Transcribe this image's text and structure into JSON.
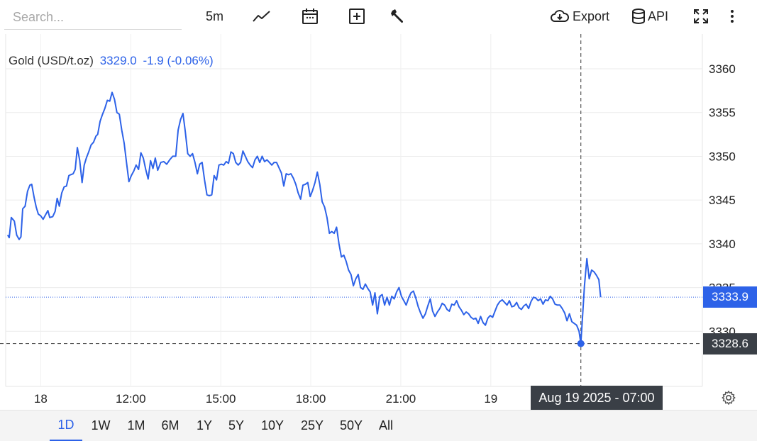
{
  "toolbar": {
    "search_placeholder": "Search...",
    "interval": "5m",
    "export_label": "Export",
    "api_label": "API"
  },
  "legend": {
    "name": "Gold (USD/t.oz)",
    "price": "3329.0",
    "change": "-1.9 (-0.06%)"
  },
  "crosshair": {
    "price_label": "3328.6",
    "time_label": "Aug 19 2025 - 07:00"
  },
  "last_price_label": "3333.9",
  "ranges": [
    "1D",
    "1W",
    "1M",
    "6M",
    "1Y",
    "5Y",
    "10Y",
    "25Y",
    "50Y",
    "All"
  ],
  "active_range": "1D",
  "colors": {
    "line": "#2d62e8",
    "price_tag": "#2d62e8",
    "crosshair_tag": "#3a3f46"
  },
  "chart_data": {
    "type": "line",
    "title": "Gold (USD/t.oz)",
    "xlabel": "",
    "ylabel": "",
    "grid": true,
    "ylim": [
      3325,
      3363
    ],
    "y_ticks": [
      3330,
      3335,
      3340,
      3345,
      3350,
      3355,
      3360
    ],
    "x_ticks": [
      {
        "label": "18",
        "hour": 0
      },
      {
        "label": "12:00",
        "hour": 3
      },
      {
        "label": "15:00",
        "hour": 6
      },
      {
        "label": "18:00",
        "hour": 9
      },
      {
        "label": "21:00",
        "hour": 12
      },
      {
        "label": "19",
        "hour": 15
      }
    ],
    "xlim_hours": [
      -1.12,
      22.05
    ],
    "crosshair": {
      "hour": 18.0,
      "value": 3328.6
    },
    "last_value": 3333.9,
    "series": [
      {
        "name": "Gold (USD/t.oz)",
        "points": [
          [
            -1.1,
            3341.0
          ],
          [
            -1.05,
            3340.7
          ],
          [
            -0.98,
            3343.0
          ],
          [
            -0.88,
            3342.6
          ],
          [
            -0.8,
            3341.0
          ],
          [
            -0.72,
            3340.5
          ],
          [
            -0.66,
            3340.8
          ],
          [
            -0.6,
            3344.0
          ],
          [
            -0.52,
            3344.3
          ],
          [
            -0.44,
            3346.0
          ],
          [
            -0.36,
            3346.7
          ],
          [
            -0.3,
            3346.8
          ],
          [
            -0.22,
            3345.3
          ],
          [
            -0.15,
            3344.2
          ],
          [
            -0.08,
            3343.4
          ],
          [
            0.0,
            3343.2
          ],
          [
            0.08,
            3342.8
          ],
          [
            0.16,
            3343.3
          ],
          [
            0.24,
            3343.8
          ],
          [
            0.3,
            3343.0
          ],
          [
            0.4,
            3343.1
          ],
          [
            0.48,
            3343.7
          ],
          [
            0.55,
            3345.2
          ],
          [
            0.62,
            3344.3
          ],
          [
            0.7,
            3345.8
          ],
          [
            0.78,
            3346.5
          ],
          [
            0.86,
            3346.6
          ],
          [
            0.94,
            3347.8
          ],
          [
            1.0,
            3347.9
          ],
          [
            1.08,
            3348.0
          ],
          [
            1.15,
            3348.5
          ],
          [
            1.22,
            3351.0
          ],
          [
            1.3,
            3349.5
          ],
          [
            1.38,
            3347.0
          ],
          [
            1.45,
            3349.0
          ],
          [
            1.52,
            3349.8
          ],
          [
            1.6,
            3350.5
          ],
          [
            1.68,
            3351.3
          ],
          [
            1.76,
            3351.6
          ],
          [
            1.84,
            3352.3
          ],
          [
            1.9,
            3352.5
          ],
          [
            1.98,
            3354.0
          ],
          [
            2.06,
            3354.8
          ],
          [
            2.14,
            3355.5
          ],
          [
            2.22,
            3356.4
          ],
          [
            2.3,
            3356.3
          ],
          [
            2.38,
            3357.3
          ],
          [
            2.46,
            3356.5
          ],
          [
            2.54,
            3355.0
          ],
          [
            2.62,
            3354.8
          ],
          [
            2.7,
            3353.0
          ],
          [
            2.78,
            3351.5
          ],
          [
            2.86,
            3349.3
          ],
          [
            2.94,
            3347.1
          ],
          [
            3.02,
            3347.8
          ],
          [
            3.1,
            3348.3
          ],
          [
            3.18,
            3349.0
          ],
          [
            3.26,
            3348.5
          ],
          [
            3.34,
            3350.4
          ],
          [
            3.42,
            3349.8
          ],
          [
            3.5,
            3348.5
          ],
          [
            3.58,
            3347.4
          ],
          [
            3.66,
            3349.5
          ],
          [
            3.74,
            3348.6
          ],
          [
            3.82,
            3349.8
          ],
          [
            3.9,
            3348.4
          ],
          [
            4.0,
            3349.3
          ],
          [
            4.1,
            3349.4
          ],
          [
            4.2,
            3349.1
          ],
          [
            4.3,
            3349.6
          ],
          [
            4.4,
            3350.0
          ],
          [
            4.5,
            3350.0
          ],
          [
            4.58,
            3353.0
          ],
          [
            4.66,
            3354.2
          ],
          [
            4.74,
            3354.9
          ],
          [
            4.82,
            3352.8
          ],
          [
            4.9,
            3350.3
          ],
          [
            4.98,
            3350.0
          ],
          [
            5.06,
            3350.3
          ],
          [
            5.14,
            3349.3
          ],
          [
            5.22,
            3348.0
          ],
          [
            5.3,
            3349.1
          ],
          [
            5.38,
            3349.3
          ],
          [
            5.46,
            3347.3
          ],
          [
            5.54,
            3345.6
          ],
          [
            5.62,
            3345.5
          ],
          [
            5.7,
            3345.6
          ],
          [
            5.78,
            3347.8
          ],
          [
            5.86,
            3347.3
          ],
          [
            5.94,
            3349.0
          ],
          [
            6.02,
            3349.1
          ],
          [
            6.1,
            3349.0
          ],
          [
            6.18,
            3349.4
          ],
          [
            6.26,
            3349.2
          ],
          [
            6.34,
            3350.5
          ],
          [
            6.42,
            3350.3
          ],
          [
            6.5,
            3349.3
          ],
          [
            6.58,
            3349.0
          ],
          [
            6.66,
            3349.3
          ],
          [
            6.74,
            3350.6
          ],
          [
            6.82,
            3350.0
          ],
          [
            6.9,
            3349.4
          ],
          [
            6.98,
            3349.0
          ],
          [
            7.06,
            3348.7
          ],
          [
            7.14,
            3349.6
          ],
          [
            7.22,
            3350.0
          ],
          [
            7.3,
            3349.3
          ],
          [
            7.38,
            3350.0
          ],
          [
            7.46,
            3349.4
          ],
          [
            7.54,
            3349.6
          ],
          [
            7.62,
            3349.3
          ],
          [
            7.7,
            3349.0
          ],
          [
            7.78,
            3349.3
          ],
          [
            7.86,
            3349.3
          ],
          [
            7.94,
            3348.7
          ],
          [
            8.02,
            3348.1
          ],
          [
            8.1,
            3346.6
          ],
          [
            8.18,
            3348.0
          ],
          [
            8.26,
            3347.9
          ],
          [
            8.34,
            3348.0
          ],
          [
            8.42,
            3347.5
          ],
          [
            8.5,
            3346.8
          ],
          [
            8.58,
            3345.8
          ],
          [
            8.66,
            3345.1
          ],
          [
            8.74,
            3346.7
          ],
          [
            8.82,
            3346.8
          ],
          [
            8.9,
            3347.0
          ],
          [
            8.98,
            3345.4
          ],
          [
            9.06,
            3346.1
          ],
          [
            9.14,
            3347.0
          ],
          [
            9.22,
            3348.2
          ],
          [
            9.3,
            3346.8
          ],
          [
            9.38,
            3344.8
          ],
          [
            9.46,
            3344.2
          ],
          [
            9.54,
            3343.0
          ],
          [
            9.62,
            3341.2
          ],
          [
            9.7,
            3341.4
          ],
          [
            9.78,
            3341.2
          ],
          [
            9.86,
            3341.9
          ],
          [
            9.94,
            3340.0
          ],
          [
            10.02,
            3338.5
          ],
          [
            10.1,
            3338.7
          ],
          [
            10.18,
            3338.0
          ],
          [
            10.26,
            3337.0
          ],
          [
            10.34,
            3336.5
          ],
          [
            10.42,
            3335.2
          ],
          [
            10.5,
            3336.0
          ],
          [
            10.58,
            3336.5
          ],
          [
            10.66,
            3335.0
          ],
          [
            10.74,
            3334.8
          ],
          [
            10.82,
            3335.4
          ],
          [
            10.9,
            3334.9
          ],
          [
            10.98,
            3334.5
          ],
          [
            11.06,
            3333.0
          ],
          [
            11.14,
            3334.4
          ],
          [
            11.22,
            3332.0
          ],
          [
            11.3,
            3334.0
          ],
          [
            11.38,
            3334.2
          ],
          [
            11.46,
            3333.0
          ],
          [
            11.54,
            3333.9
          ],
          [
            11.62,
            3333.0
          ],
          [
            11.7,
            3334.0
          ],
          [
            11.78,
            3333.7
          ],
          [
            11.86,
            3334.5
          ],
          [
            11.94,
            3335.0
          ],
          [
            12.02,
            3334.0
          ],
          [
            12.1,
            3333.5
          ],
          [
            12.18,
            3333.0
          ],
          [
            12.26,
            3333.8
          ],
          [
            12.34,
            3334.4
          ],
          [
            12.42,
            3334.6
          ],
          [
            12.5,
            3333.8
          ],
          [
            12.58,
            3332.8
          ],
          [
            12.66,
            3332.1
          ],
          [
            12.74,
            3331.5
          ],
          [
            12.82,
            3332.0
          ],
          [
            12.9,
            3332.9
          ],
          [
            12.98,
            3333.7
          ],
          [
            13.06,
            3332.3
          ],
          [
            13.14,
            3331.7
          ],
          [
            13.22,
            3332.2
          ],
          [
            13.3,
            3332.6
          ],
          [
            13.38,
            3333.2
          ],
          [
            13.46,
            3333.0
          ],
          [
            13.54,
            3332.5
          ],
          [
            13.62,
            3332.3
          ],
          [
            13.7,
            3333.1
          ],
          [
            13.78,
            3333.0
          ],
          [
            13.86,
            3333.5
          ],
          [
            13.94,
            3332.8
          ],
          [
            14.02,
            3332.4
          ],
          [
            14.1,
            3331.9
          ],
          [
            14.18,
            3332.2
          ],
          [
            14.26,
            3332.0
          ],
          [
            14.34,
            3331.6
          ],
          [
            14.42,
            3331.4
          ],
          [
            14.5,
            3331.5
          ],
          [
            14.58,
            3330.9
          ],
          [
            14.66,
            3331.7
          ],
          [
            14.74,
            3331.0
          ],
          [
            14.82,
            3330.7
          ],
          [
            14.9,
            3331.5
          ],
          [
            14.98,
            3331.8
          ],
          [
            15.06,
            3331.6
          ],
          [
            15.14,
            3332.3
          ],
          [
            15.22,
            3333.0
          ],
          [
            15.3,
            3333.4
          ],
          [
            15.38,
            3333.6
          ],
          [
            15.46,
            3333.3
          ],
          [
            15.54,
            3333.0
          ],
          [
            15.62,
            3333.5
          ],
          [
            15.7,
            3332.8
          ],
          [
            15.78,
            3332.9
          ],
          [
            15.86,
            3333.3
          ],
          [
            15.94,
            3332.7
          ],
          [
            16.02,
            3332.5
          ],
          [
            16.1,
            3332.9
          ],
          [
            16.18,
            3333.1
          ],
          [
            16.26,
            3332.6
          ],
          [
            16.34,
            3333.4
          ],
          [
            16.42,
            3333.9
          ],
          [
            16.5,
            3333.8
          ],
          [
            16.58,
            3333.5
          ],
          [
            16.66,
            3333.7
          ],
          [
            16.74,
            3333.1
          ],
          [
            16.82,
            3333.6
          ],
          [
            16.9,
            3333.5
          ],
          [
            16.98,
            3334.0
          ],
          [
            17.06,
            3333.7
          ],
          [
            17.14,
            3333.1
          ],
          [
            17.22,
            3333.0
          ],
          [
            17.3,
            3333.0
          ],
          [
            17.38,
            3332.6
          ],
          [
            17.46,
            3332.1
          ],
          [
            17.54,
            3331.2
          ],
          [
            17.62,
            3332.0
          ],
          [
            17.7,
            3331.1
          ],
          [
            17.78,
            3330.9
          ],
          [
            17.86,
            3330.7
          ],
          [
            17.94,
            3330.0
          ],
          [
            18.0,
            3328.6
          ],
          [
            18.06,
            3331.8
          ],
          [
            18.12,
            3335.2
          ],
          [
            18.2,
            3338.3
          ],
          [
            18.28,
            3336.0
          ],
          [
            18.36,
            3337.0
          ],
          [
            18.44,
            3336.8
          ],
          [
            18.52,
            3336.4
          ],
          [
            18.6,
            3335.9
          ],
          [
            18.66,
            3333.9
          ]
        ]
      }
    ]
  }
}
